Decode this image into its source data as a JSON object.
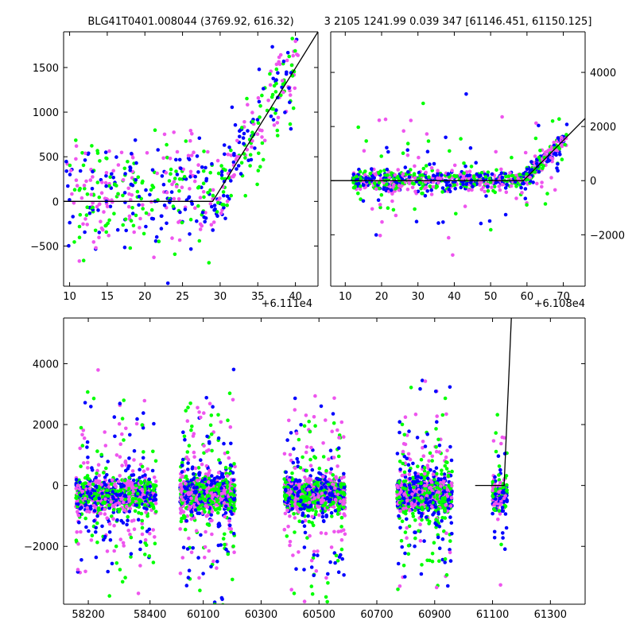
{
  "titles": {
    "left": "BLG41T0401.008044 (3769.92, 616.32)",
    "right": "3 2105 1241.99 0.039 347 [61146.451, 61150.125]"
  },
  "colors": {
    "green": "#00ff00",
    "blue": "#0000ff",
    "pink": "#ee55ee",
    "line": "#000000"
  },
  "chart_data": [
    {
      "name": "top-left",
      "type": "scatter",
      "xlim": [
        9.2,
        43
      ],
      "ylim": [
        -950,
        1900
      ],
      "x_offset_label": "+6.111e4",
      "xticks": [
        10,
        15,
        20,
        25,
        30,
        35,
        40
      ],
      "yticks": [
        -500,
        0,
        500,
        1000,
        1500
      ],
      "model_line": [
        [
          9.2,
          0
        ],
        [
          29,
          0
        ],
        [
          43,
          1900
        ]
      ]
    },
    {
      "name": "top-right",
      "type": "scatter",
      "xlim": [
        6,
        76
      ],
      "ylim": [
        -3900,
        5500
      ],
      "x_offset_label": "+6.108e4",
      "xticks": [
        10,
        20,
        30,
        40,
        50,
        60,
        70
      ],
      "yticks": [
        -2000,
        0,
        2000,
        4000
      ],
      "model_line": [
        [
          6,
          0
        ],
        [
          59,
          0
        ],
        [
          76,
          2300
        ]
      ]
    },
    {
      "name": "bottom",
      "type": "scatter",
      "ylim": [
        -3900,
        5500
      ],
      "segments": [
        {
          "xlim": [
            58120,
            58460
          ],
          "xticks": [
            58200,
            58400
          ]
        },
        {
          "xlim": [
            59980,
            61420
          ],
          "xticks": [
            60100,
            60300,
            60500,
            60700,
            60900,
            61100,
            61300
          ]
        }
      ],
      "yticks": [
        -2000,
        0,
        2000,
        4000
      ],
      "model_line": [
        [
          61040,
          0
        ],
        [
          61140,
          0
        ],
        [
          61165,
          5500
        ]
      ]
    }
  ]
}
